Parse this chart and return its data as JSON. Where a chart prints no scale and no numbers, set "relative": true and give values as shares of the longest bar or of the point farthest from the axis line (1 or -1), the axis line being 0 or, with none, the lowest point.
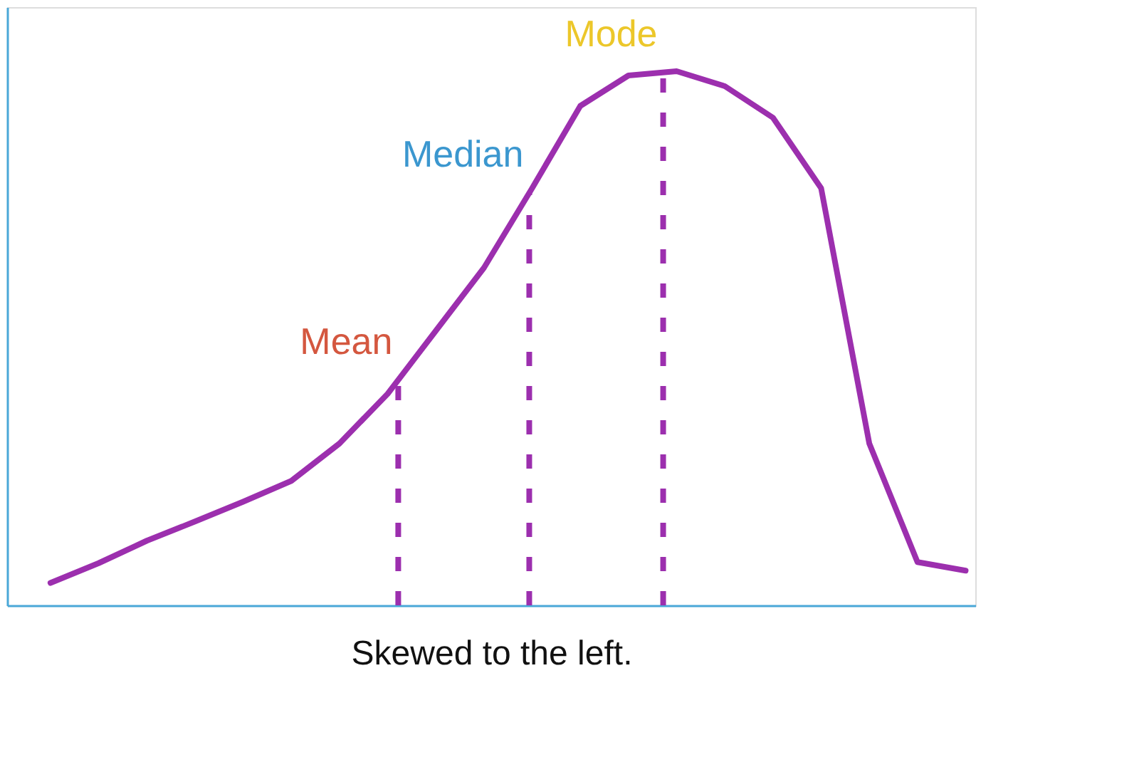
{
  "chart_data": {
    "type": "line",
    "relative": true,
    "xlabel": "Skewed to the left.",
    "categories": [
      null,
      null,
      null,
      null,
      null,
      null,
      null,
      null,
      null,
      null,
      null,
      null,
      null,
      null,
      null,
      null,
      null,
      null,
      null,
      null
    ],
    "series": [
      {
        "color": "#9c2fae",
        "values": [
          0.042,
          0.079,
          0.121,
          0.157,
          0.194,
          0.233,
          0.303,
          0.396,
          0.514,
          0.632,
          0.781,
          0.935,
          0.992,
          1,
          0.972,
          0.913,
          0.781,
          0.303,
          0.081,
          0.065
        ]
      }
    ],
    "marker": "none",
    "line_style": "solid",
    "annotations": [
      "Mean",
      "Median",
      "Mode"
    ]
  }
}
